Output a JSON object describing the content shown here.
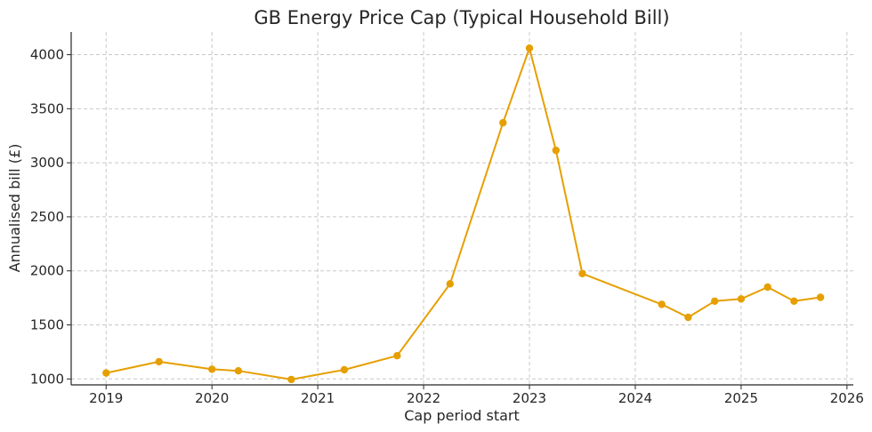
{
  "chart_data": {
    "type": "line",
    "title": "GB Energy Price Cap (Typical Household Bill)",
    "xlabel": "Cap period start",
    "ylabel": "Annualised bill (£)",
    "xlim": [
      2018.67,
      2026.06
    ],
    "ylim": [
      945,
      4210
    ],
    "x_ticks": [
      2019,
      2020,
      2021,
      2022,
      2023,
      2024,
      2025,
      2026
    ],
    "y_ticks": [
      1000,
      1500,
      2000,
      2500,
      3000,
      3500,
      4000
    ],
    "grid": true,
    "color": "#E69F00",
    "series": [
      {
        "points": [
          {
            "x": "2019-01",
            "y": 1055
          },
          {
            "x": "2019-07",
            "y": 1160
          },
          {
            "x": "2020-01",
            "y": 1090
          },
          {
            "x": "2020-04",
            "y": 1075
          },
          {
            "x": "2020-10",
            "y": 995
          },
          {
            "x": "2021-04",
            "y": 1085
          },
          {
            "x": "2021-10",
            "y": 1215
          },
          {
            "x": "2022-04",
            "y": 1880
          },
          {
            "x": "2022-10",
            "y": 3370
          },
          {
            "x": "2023-01",
            "y": 4060
          },
          {
            "x": "2023-04",
            "y": 3115
          },
          {
            "x": "2023-07",
            "y": 1975
          },
          {
            "x": "2024-04",
            "y": 1690
          },
          {
            "x": "2024-07",
            "y": 1570
          },
          {
            "x": "2024-10",
            "y": 1720
          },
          {
            "x": "2025-01",
            "y": 1740
          },
          {
            "x": "2025-04",
            "y": 1850
          },
          {
            "x": "2025-07",
            "y": 1720
          },
          {
            "x": "2025-10",
            "y": 1755
          }
        ]
      }
    ]
  }
}
